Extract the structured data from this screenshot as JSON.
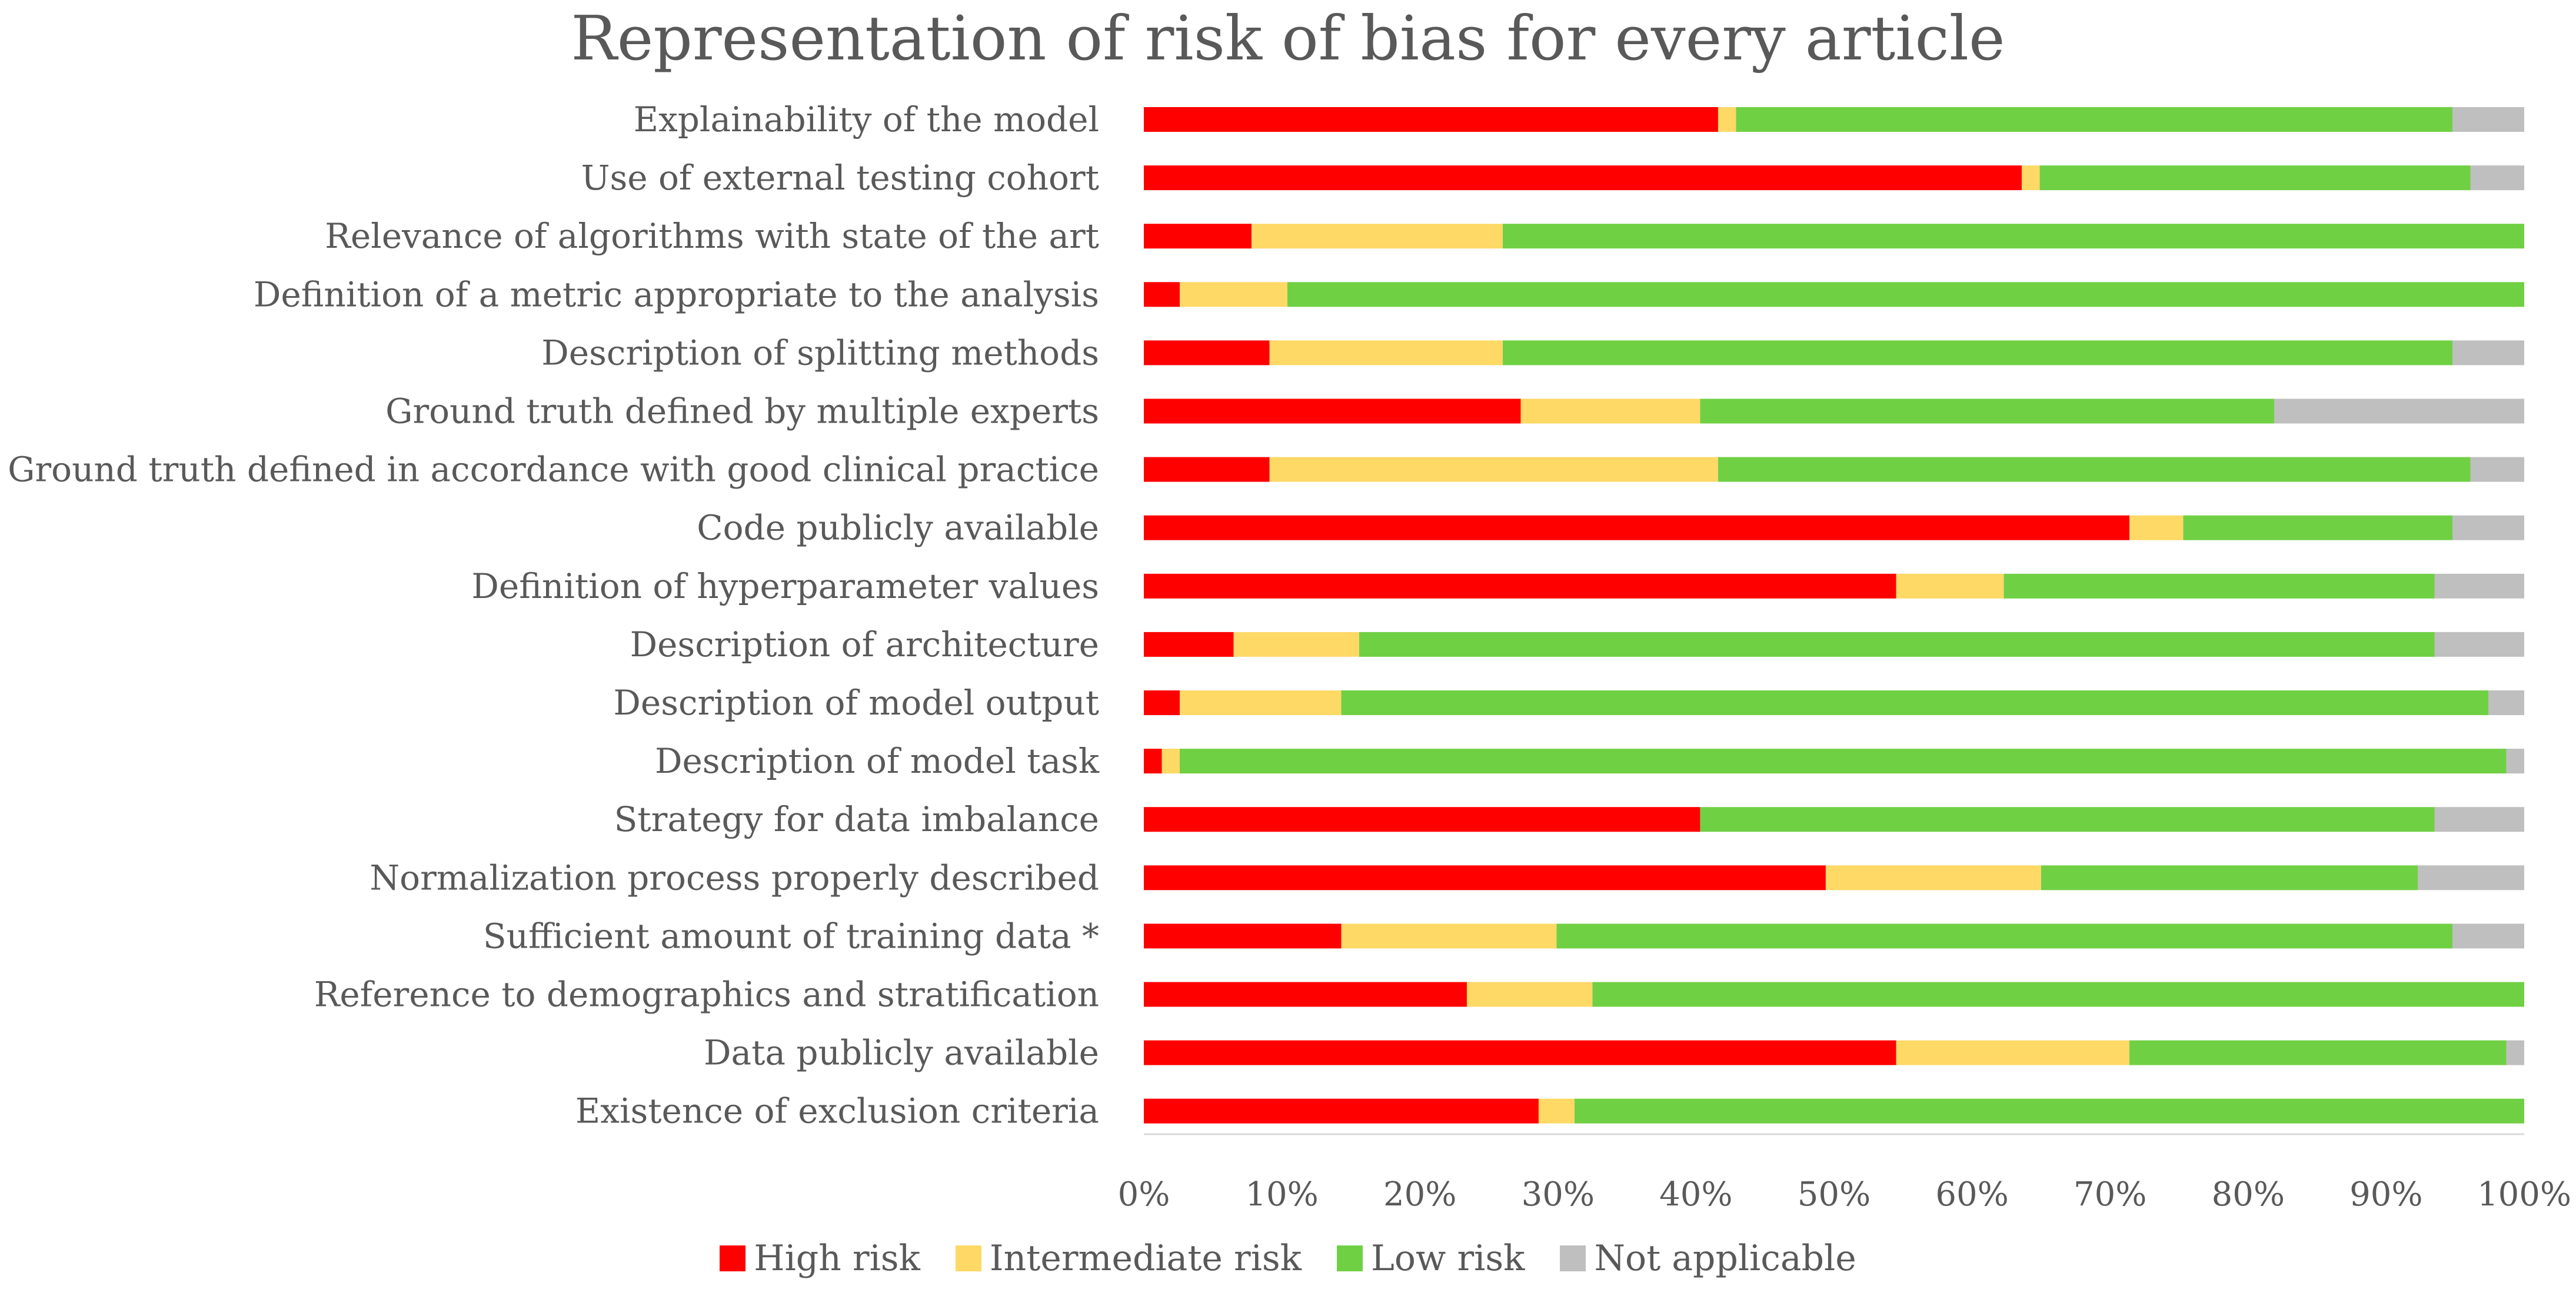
{
  "chart_data": {
    "type": "bar",
    "orientation": "horizontal",
    "stacked": "percent",
    "title": "Representation of risk of bias for every article",
    "xlabel": "",
    "ylabel": "",
    "xlim": [
      0,
      100
    ],
    "x_ticks": [
      "0%",
      "10%",
      "20%",
      "30%",
      "40%",
      "50%",
      "60%",
      "70%",
      "80%",
      "90%",
      "100%"
    ],
    "grid": false,
    "legend_position": "bottom",
    "categories": [
      "Explainability of the model",
      "Use of external testing cohort",
      "Relevance of algorithms with state of the art",
      "Definition of a metric appropriate to the analysis",
      "Description of splitting methods",
      "Ground truth defined by multiple experts",
      "Ground truth defined in accordance with good clinical practice",
      "Code publicly available",
      "Definition of hyperparameter values",
      "Description of architecture",
      "Description of model output",
      "Description of model task",
      "Strategy for data imbalance",
      "Normalization process properly described",
      "Sufficient amount of training data *",
      "Reference to demographics and stratification",
      "Data publicly available",
      "Existence of exclusion criteria"
    ],
    "series": [
      {
        "name": "High risk",
        "color": "#ff0000",
        "values": [
          41.6,
          63.6,
          7.8,
          2.6,
          9.1,
          27.3,
          9.1,
          71.4,
          54.5,
          6.5,
          2.6,
          1.3,
          40.3,
          49.4,
          14.3,
          23.4,
          54.5,
          28.6
        ]
      },
      {
        "name": "Intermediate risk",
        "color": "#ffd966",
        "values": [
          1.3,
          1.3,
          18.2,
          7.8,
          16.9,
          13.0,
          32.5,
          3.9,
          7.8,
          9.1,
          11.7,
          1.3,
          0.0,
          15.6,
          15.6,
          9.1,
          16.9,
          2.6
        ]
      },
      {
        "name": "Low risk",
        "color": "#70d044",
        "values": [
          51.9,
          31.2,
          74.0,
          89.6,
          68.8,
          41.6,
          54.5,
          19.5,
          31.2,
          77.9,
          83.1,
          96.1,
          53.2,
          27.3,
          64.9,
          67.5,
          27.3,
          68.8
        ]
      },
      {
        "name": "Not applicable",
        "color": "#bfbfbf",
        "values": [
          5.2,
          3.9,
          0.0,
          0.0,
          5.2,
          18.1,
          3.9,
          5.2,
          6.5,
          6.5,
          2.6,
          1.3,
          6.5,
          7.7,
          5.2,
          0.0,
          1.3,
          0.0
        ]
      }
    ]
  }
}
